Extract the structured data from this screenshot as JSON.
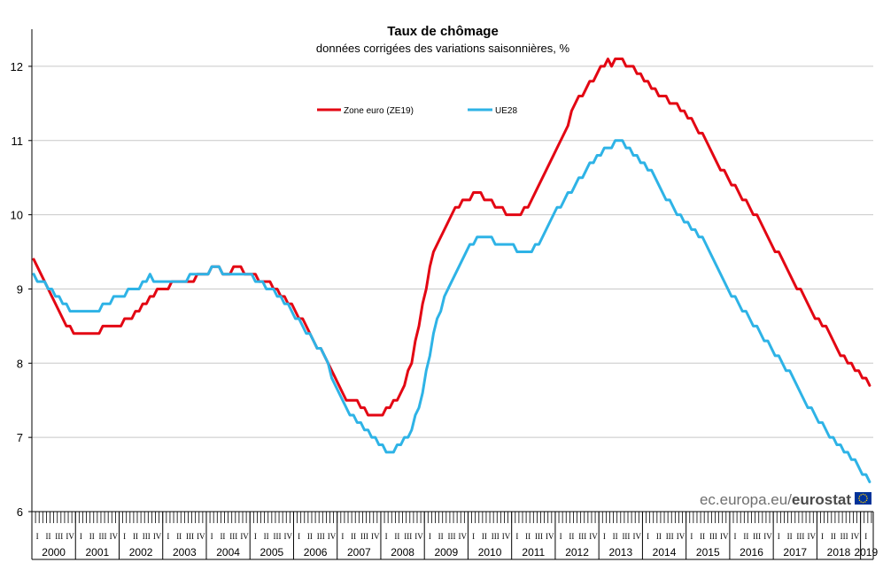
{
  "chart_data": {
    "type": "line",
    "title": "Taux de chômage",
    "subtitle": "données corrigées des variations saisonnières, %",
    "ylim": [
      6,
      12.5
    ],
    "yticks": [
      6,
      7,
      8,
      9,
      10,
      11,
      12
    ],
    "grid": true,
    "legend_position": "top-center",
    "x_start": "2000-01",
    "x_frequency": "monthly",
    "x_end": "2019-03",
    "years": [
      "2000",
      "2001",
      "2002",
      "2003",
      "2004",
      "2005",
      "2006",
      "2007",
      "2008",
      "2009",
      "2010",
      "2011",
      "2012",
      "2013",
      "2014",
      "2015",
      "2016",
      "2017",
      "2018",
      "2019"
    ],
    "quarter_labels": [
      "I",
      "II",
      "III",
      "IV"
    ],
    "series": [
      {
        "name": "Zone euro (ZE19)",
        "color": "#e30613",
        "keypoints": [
          [
            "2000-01",
            9.4
          ],
          [
            "2000-06",
            8.9
          ],
          [
            "2000-09",
            8.6
          ],
          [
            "2000-12",
            8.4
          ],
          [
            "2001-06",
            8.4
          ],
          [
            "2001-09",
            8.5
          ],
          [
            "2001-12",
            8.5
          ],
          [
            "2002-06",
            8.7
          ],
          [
            "2002-09",
            8.9
          ],
          [
            "2002-12",
            9.0
          ],
          [
            "2003-06",
            9.1
          ],
          [
            "2003-12",
            9.2
          ],
          [
            "2004-03",
            9.3
          ],
          [
            "2004-06",
            9.2
          ],
          [
            "2004-09",
            9.3
          ],
          [
            "2004-12",
            9.2
          ],
          [
            "2005-06",
            9.1
          ],
          [
            "2005-09",
            8.9
          ],
          [
            "2005-12",
            8.8
          ],
          [
            "2006-06",
            8.3
          ],
          [
            "2006-09",
            8.1
          ],
          [
            "2006-12",
            7.8
          ],
          [
            "2007-03",
            7.5
          ],
          [
            "2007-06",
            7.5
          ],
          [
            "2007-09",
            7.3
          ],
          [
            "2007-12",
            7.3
          ],
          [
            "2008-03",
            7.4
          ],
          [
            "2008-06",
            7.6
          ],
          [
            "2008-09",
            8.0
          ],
          [
            "2008-12",
            8.8
          ],
          [
            "2009-03",
            9.5
          ],
          [
            "2009-06",
            9.8
          ],
          [
            "2009-09",
            10.1
          ],
          [
            "2009-12",
            10.2
          ],
          [
            "2010-03",
            10.3
          ],
          [
            "2010-06",
            10.2
          ],
          [
            "2010-09",
            10.1
          ],
          [
            "2010-12",
            10.0
          ],
          [
            "2011-03",
            10.0
          ],
          [
            "2011-06",
            10.2
          ],
          [
            "2011-09",
            10.5
          ],
          [
            "2011-12",
            10.8
          ],
          [
            "2012-03",
            11.1
          ],
          [
            "2012-06",
            11.5
          ],
          [
            "2012-09",
            11.7
          ],
          [
            "2012-12",
            11.9
          ],
          [
            "2013-03",
            12.1
          ],
          [
            "2013-04",
            12.0
          ],
          [
            "2013-06",
            12.1
          ],
          [
            "2013-09",
            12.0
          ],
          [
            "2013-12",
            11.9
          ],
          [
            "2014-03",
            11.7
          ],
          [
            "2014-06",
            11.6
          ],
          [
            "2014-09",
            11.5
          ],
          [
            "2014-12",
            11.4
          ],
          [
            "2015-03",
            11.2
          ],
          [
            "2015-06",
            11.0
          ],
          [
            "2015-09",
            10.7
          ],
          [
            "2015-12",
            10.5
          ],
          [
            "2016-03",
            10.3
          ],
          [
            "2016-06",
            10.1
          ],
          [
            "2016-09",
            9.9
          ],
          [
            "2016-12",
            9.6
          ],
          [
            "2017-03",
            9.4
          ],
          [
            "2017-06",
            9.1
          ],
          [
            "2017-09",
            8.9
          ],
          [
            "2017-12",
            8.6
          ],
          [
            "2018-03",
            8.5
          ],
          [
            "2018-06",
            8.2
          ],
          [
            "2018-09",
            8.0
          ],
          [
            "2018-12",
            7.9
          ],
          [
            "2019-03",
            7.7
          ]
        ]
      },
      {
        "name": "UE28",
        "color": "#2eb3e6",
        "keypoints": [
          [
            "2000-01",
            9.2
          ],
          [
            "2000-03",
            9.1
          ],
          [
            "2000-06",
            9.0
          ],
          [
            "2000-09",
            8.8
          ],
          [
            "2000-12",
            8.7
          ],
          [
            "2001-06",
            8.7
          ],
          [
            "2001-09",
            8.8
          ],
          [
            "2001-12",
            8.9
          ],
          [
            "2002-06",
            9.0
          ],
          [
            "2002-09",
            9.2
          ],
          [
            "2002-10",
            9.1
          ],
          [
            "2002-12",
            9.1
          ],
          [
            "2003-06",
            9.1
          ],
          [
            "2003-09",
            9.2
          ],
          [
            "2003-12",
            9.2
          ],
          [
            "2004-03",
            9.3
          ],
          [
            "2004-06",
            9.2
          ],
          [
            "2004-09",
            9.2
          ],
          [
            "2004-12",
            9.2
          ],
          [
            "2005-06",
            9.0
          ],
          [
            "2005-09",
            8.9
          ],
          [
            "2005-12",
            8.7
          ],
          [
            "2006-06",
            8.3
          ],
          [
            "2006-09",
            8.1
          ],
          [
            "2006-12",
            7.7
          ],
          [
            "2007-03",
            7.4
          ],
          [
            "2007-06",
            7.2
          ],
          [
            "2007-09",
            7.1
          ],
          [
            "2007-12",
            6.9
          ],
          [
            "2008-03",
            6.8
          ],
          [
            "2008-06",
            6.9
          ],
          [
            "2008-09",
            7.1
          ],
          [
            "2008-12",
            7.6
          ],
          [
            "2009-03",
            8.4
          ],
          [
            "2009-06",
            8.9
          ],
          [
            "2009-09",
            9.2
          ],
          [
            "2009-12",
            9.5
          ],
          [
            "2010-03",
            9.7
          ],
          [
            "2010-06",
            9.7
          ],
          [
            "2010-09",
            9.6
          ],
          [
            "2010-12",
            9.6
          ],
          [
            "2011-03",
            9.5
          ],
          [
            "2011-06",
            9.5
          ],
          [
            "2011-09",
            9.7
          ],
          [
            "2011-12",
            10.0
          ],
          [
            "2012-03",
            10.2
          ],
          [
            "2012-06",
            10.4
          ],
          [
            "2012-09",
            10.6
          ],
          [
            "2012-12",
            10.8
          ],
          [
            "2013-03",
            10.9
          ],
          [
            "2013-06",
            11.0
          ],
          [
            "2013-09",
            10.9
          ],
          [
            "2013-12",
            10.7
          ],
          [
            "2014-03",
            10.6
          ],
          [
            "2014-06",
            10.3
          ],
          [
            "2014-09",
            10.1
          ],
          [
            "2014-12",
            9.9
          ],
          [
            "2015-03",
            9.8
          ],
          [
            "2015-06",
            9.6
          ],
          [
            "2015-09",
            9.3
          ],
          [
            "2015-12",
            9.0
          ],
          [
            "2016-03",
            8.8
          ],
          [
            "2016-06",
            8.6
          ],
          [
            "2016-09",
            8.4
          ],
          [
            "2016-12",
            8.2
          ],
          [
            "2017-03",
            8.0
          ],
          [
            "2017-06",
            7.8
          ],
          [
            "2017-09",
            7.5
          ],
          [
            "2017-12",
            7.3
          ],
          [
            "2018-03",
            7.1
          ],
          [
            "2018-06",
            6.9
          ],
          [
            "2018-09",
            6.8
          ],
          [
            "2018-12",
            6.6
          ],
          [
            "2019-03",
            6.4
          ]
        ]
      }
    ]
  },
  "watermark": {
    "domain_text": "ec.europa.eu/",
    "brand_text": "eurostat",
    "flag_icon": "eu-flag-icon",
    "flag_color": "#003399",
    "star_color": "#ffcc00"
  }
}
